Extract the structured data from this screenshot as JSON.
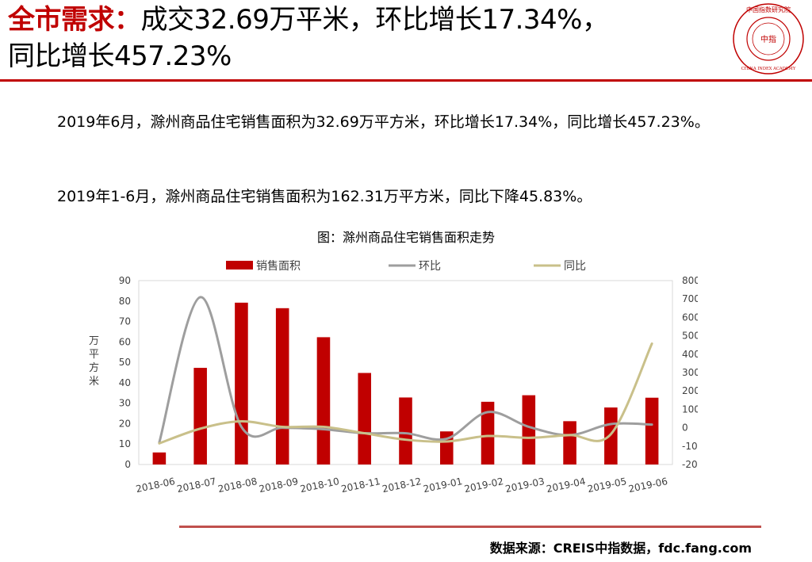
{
  "header": {
    "title_accent": "全市需求：",
    "title_line1": "成交32.69万平米，环比增长17.34%，",
    "title_line2": "同比增长457.23%",
    "logo_text_top": "中国指数研究院",
    "logo_text_center": "中指",
    "logo_text_bottom": "CHINA INDEX ACADEMY"
  },
  "body": {
    "para1": "2019年6月，滁州商品住宅销售面积为32.69万平方米，环比增长17.34%，同比增长457.23%。",
    "para2": "2019年1-6月，滁州商品住宅销售面积为162.31万平方米，同比下降45.83%。"
  },
  "footer": {
    "source": "数据来源：CREIS中指数据，fdc.fang.com"
  },
  "chart_data": {
    "type": "bar",
    "title": "图：滁州商品住宅销售面积走势",
    "categories": [
      "2018-06",
      "2018-07",
      "2018-08",
      "2018-09",
      "2018-10",
      "2018-11",
      "2018-12",
      "2019-01",
      "2019-02",
      "2019-03",
      "2019-04",
      "2019-05",
      "2019-06"
    ],
    "series": [
      {
        "name": "销售面积",
        "type": "bar",
        "axis": "left",
        "color": "#c00000",
        "values": [
          5.9,
          47.3,
          79.2,
          76.5,
          62.3,
          44.8,
          32.8,
          16.2,
          30.7,
          33.9,
          21.2,
          27.9,
          32.69
        ]
      },
      {
        "name": "环比",
        "type": "line",
        "axis": "right",
        "color": "#9e9e9e",
        "values": [
          -80,
          710,
          5,
          0,
          -8,
          -30,
          -30,
          -60,
          85,
          5,
          -40,
          20,
          17.34
        ]
      },
      {
        "name": "同比",
        "type": "line",
        "axis": "right",
        "color": "#c9c08a",
        "values": [
          -85,
          -5,
          35,
          5,
          5,
          -30,
          -65,
          -75,
          -45,
          -55,
          -40,
          -35,
          457.23
        ]
      }
    ],
    "ylabel": "万平方米",
    "y2label": "%",
    "ylim": [
      0,
      90
    ],
    "yticks": [
      0,
      10,
      20,
      30,
      40,
      50,
      60,
      70,
      80,
      90
    ],
    "y2lim": [
      -200,
      800
    ],
    "y2ticks": [
      -200,
      -100,
      0,
      100,
      200,
      300,
      400,
      500,
      600,
      700,
      800
    ],
    "legend_position": "top",
    "grid": false
  }
}
